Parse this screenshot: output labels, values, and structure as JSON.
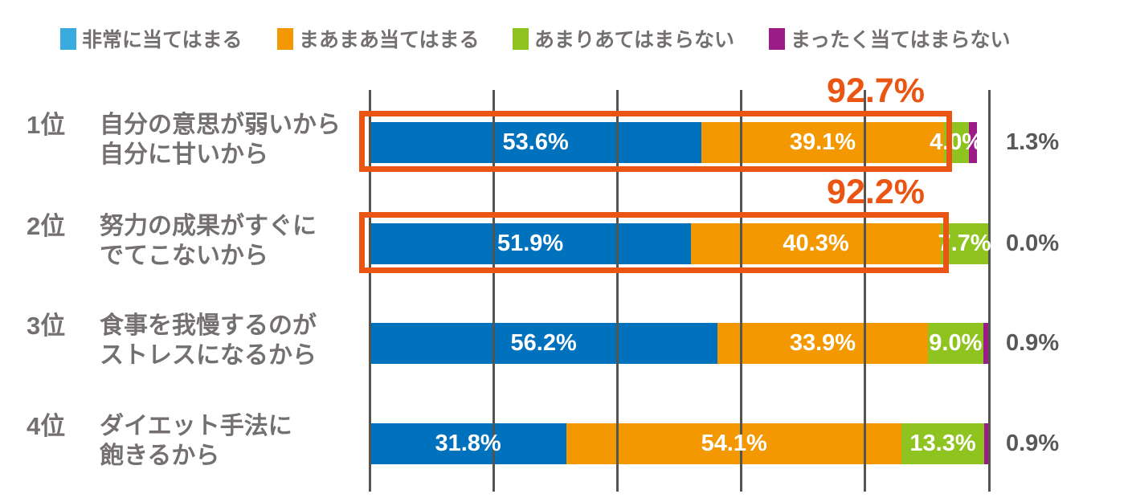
{
  "legend": {
    "items": [
      {
        "id": "strongly-applies",
        "label": "非常に当てはまる",
        "swatch_color": "#3AABDF"
      },
      {
        "id": "somewhat-applies",
        "label": "まあまあ当てはまる",
        "swatch_color": "#F39800"
      },
      {
        "id": "not-really-apply",
        "label": "あまりあてはまらない",
        "swatch_color": "#8FC31F"
      },
      {
        "id": "not-at-all-apply",
        "label": "まったく当てはまらない",
        "swatch_color": "#9B1B87"
      }
    ]
  },
  "colors": {
    "bar_blue": "#0071BC",
    "bar_orange": "#F39800",
    "bar_green": "#8FC31F",
    "bar_purple": "#9B1B87",
    "highlight": "#EA5514",
    "gridline": "#56544f",
    "row_label_gray": "#757070",
    "outside_label_gray": "#595757"
  },
  "chart_data": {
    "type": "bar",
    "orientation": "horizontal",
    "stacked": true,
    "title": "",
    "xlabel": "",
    "ylabel": "",
    "xlim": [
      0,
      100
    ],
    "gridline_percents": [
      0,
      20,
      40,
      60,
      80,
      100
    ],
    "grid": true,
    "legend_position": "top",
    "categories": [
      "1位 自分の意思が弱いから 自分に甘いから",
      "2位 努力の成果がすぐにでてこないから",
      "3位 食事を我慢するのがストレスになるから",
      "4位 ダイエット手法に飽きるから"
    ],
    "series": [
      {
        "name": "非常に当てはまる",
        "color": "#0071BC",
        "values": [
          53.6,
          51.9,
          56.2,
          31.8
        ]
      },
      {
        "name": "まあまあ当てはまる",
        "color": "#F39800",
        "values": [
          39.1,
          40.3,
          33.9,
          54.1
        ]
      },
      {
        "name": "あまりあてはまらない",
        "color": "#8FC31F",
        "values": [
          4.0,
          7.7,
          9.0,
          13.3
        ]
      },
      {
        "name": "まったく当てはまらない",
        "color": "#9B1B87",
        "values": [
          1.3,
          0.0,
          0.9,
          0.9
        ]
      }
    ],
    "annotations": [
      {
        "row": 0,
        "label": "92.7%",
        "meaning": "sum of first two segments",
        "color": "#EA5514"
      },
      {
        "row": 1,
        "label": "92.2%",
        "meaning": "sum of first two segments",
        "color": "#EA5514"
      }
    ]
  },
  "rows": [
    {
      "rank": "1位",
      "label_line1": "自分の意思が弱いから",
      "label_line2": "自分に甘いから",
      "inside_labels": [
        "53.6%",
        "39.1%",
        "4.0%"
      ],
      "outside_label": "1.3%",
      "highlight": {
        "show": true,
        "total_label": "92.7%"
      }
    },
    {
      "rank": "2位",
      "label_line1": "努力の成果がすぐに",
      "label_line2": "でてこないから",
      "inside_labels": [
        "51.9%",
        "40.3%",
        "7.7%"
      ],
      "outside_label": "0.0%",
      "highlight": {
        "show": true,
        "total_label": "92.2%"
      }
    },
    {
      "rank": "3位",
      "label_line1": "食事を我慢するのが",
      "label_line2": "ストレスになるから",
      "inside_labels": [
        "56.2%",
        "33.9%",
        "9.0%"
      ],
      "outside_label": "0.9%",
      "highlight": {
        "show": false,
        "total_label": ""
      }
    },
    {
      "rank": "4位",
      "label_line1": "ダイエット手法に",
      "label_line2": "飽きるから",
      "inside_labels": [
        "31.8%",
        "54.1%",
        "13.3%"
      ],
      "outside_label": "0.9%",
      "highlight": {
        "show": false,
        "total_label": ""
      }
    }
  ]
}
